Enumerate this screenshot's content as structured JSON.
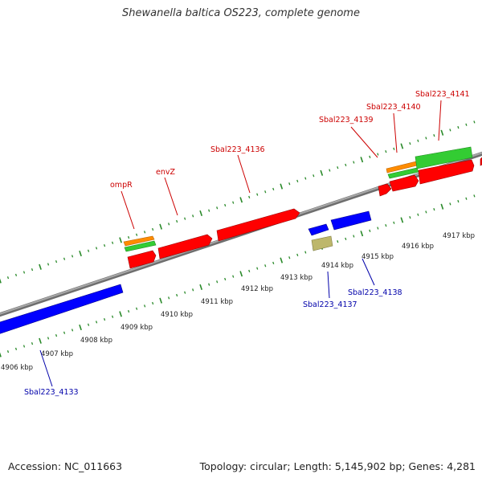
{
  "title": "Shewanella baltica OS223, complete genome",
  "footer": {
    "accession": "Accession: NC_011663",
    "summary": "Topology: circular; Length: 5,145,902 bp; Genes: 4,281"
  },
  "colors": {
    "forward_gene": "#ff0000",
    "reverse_gene": "#0000ff",
    "forward_label": "#cc0000",
    "reverse_label": "#0000aa",
    "tick": "#2a8a2a",
    "backbone": "#8c8c8c",
    "orange_feature": "#ff8c00",
    "green_feature": "#33cc33",
    "khaki_feature": "#bdb76b"
  },
  "scale_unit": "kbp",
  "scale_ticks": [
    {
      "kbp": 4906,
      "label": "4906 kbp"
    },
    {
      "kbp": 4907,
      "label": "4907 kbp"
    },
    {
      "kbp": 4908,
      "label": "4908 kbp"
    },
    {
      "kbp": 4909,
      "label": "4909 kbp"
    },
    {
      "kbp": 4910,
      "label": "4910 kbp"
    },
    {
      "kbp": 4911,
      "label": "4911 kbp"
    },
    {
      "kbp": 4912,
      "label": "4912 kbp"
    },
    {
      "kbp": 4913,
      "label": "4913 kbp"
    },
    {
      "kbp": 4914,
      "label": "4914 kbp"
    },
    {
      "kbp": 4915,
      "label": "4915 kbp"
    },
    {
      "kbp": 4916,
      "label": "4916 kbp"
    },
    {
      "kbp": 4917,
      "label": "4917 kbp"
    }
  ],
  "genes": [
    {
      "name": "Sbal223_4133",
      "strand": "reverse",
      "type": "gene"
    },
    {
      "name": "ompR",
      "strand": "forward",
      "type": "gene"
    },
    {
      "name": "envZ",
      "strand": "forward",
      "type": "gene"
    },
    {
      "name": "Sbal223_4136",
      "strand": "forward",
      "type": "gene"
    },
    {
      "name": "Sbal223_4137",
      "strand": "reverse",
      "type": "gene"
    },
    {
      "name": "Sbal223_4138",
      "strand": "reverse",
      "type": "gene"
    },
    {
      "name": "Sbal223_4139",
      "strand": "forward",
      "type": "gene"
    },
    {
      "name": "Sbal223_4140",
      "strand": "forward",
      "type": "gene"
    },
    {
      "name": "Sbal223_4141",
      "strand": "forward",
      "type": "gene"
    }
  ]
}
